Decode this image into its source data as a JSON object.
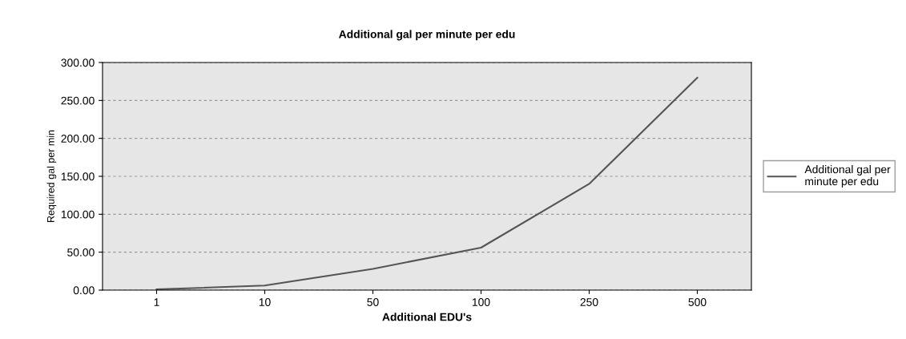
{
  "chart_data": {
    "type": "line",
    "title": "Additional gal per minute per edu",
    "xlabel": "Additional EDU's",
    "ylabel": "Required gal per min",
    "categories": [
      "1",
      "10",
      "50",
      "100",
      "250",
      "500"
    ],
    "series": [
      {
        "name": "Additional gal per\nminute per edu",
        "color": "#555555",
        "values": [
          1,
          6,
          28,
          56,
          140,
          280
        ]
      }
    ],
    "ylim": [
      0,
      300
    ],
    "yticks": [
      {
        "value": 0,
        "label": "0.00"
      },
      {
        "value": 50,
        "label": "50.00"
      },
      {
        "value": 100,
        "label": "100.00"
      },
      {
        "value": 150,
        "label": "150.00"
      },
      {
        "value": 200,
        "label": "200.00"
      },
      {
        "value": 250,
        "label": "250.00"
      },
      {
        "value": 300,
        "label": "300.00"
      }
    ],
    "grid": "y",
    "legend": "right",
    "marker": "none",
    "line_style": "solid"
  }
}
